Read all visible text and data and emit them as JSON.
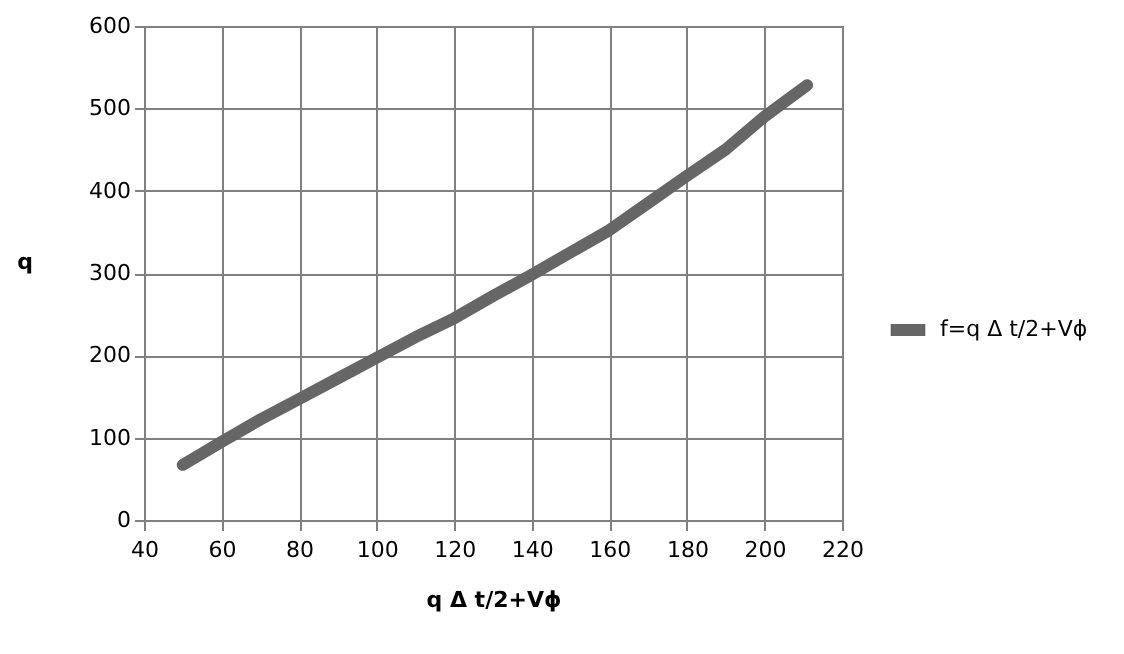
{
  "chart_data": {
    "type": "line",
    "xlabel": "q Δ t/2+Vϕ",
    "ylabel": "q",
    "x": [
      50,
      60,
      70,
      80,
      90,
      100,
      110,
      120,
      130,
      140,
      150,
      160,
      170,
      180,
      190,
      200,
      211
    ],
    "series": [
      {
        "name": "f=q Δ t/2+Vϕ",
        "color": "#666666",
        "values": [
          67,
          95,
          122,
          147,
          172,
          197,
          222,
          245,
          272,
          298,
          325,
          352,
          385,
          418,
          450,
          490,
          528
        ]
      }
    ],
    "xlim": [
      40,
      220
    ],
    "xticks": [
      40,
      60,
      80,
      100,
      120,
      140,
      160,
      180,
      200,
      220
    ],
    "ylim": [
      0,
      600
    ],
    "yticks": [
      0,
      100,
      200,
      300,
      400,
      500,
      600
    ],
    "grid": true,
    "legend": "right"
  }
}
